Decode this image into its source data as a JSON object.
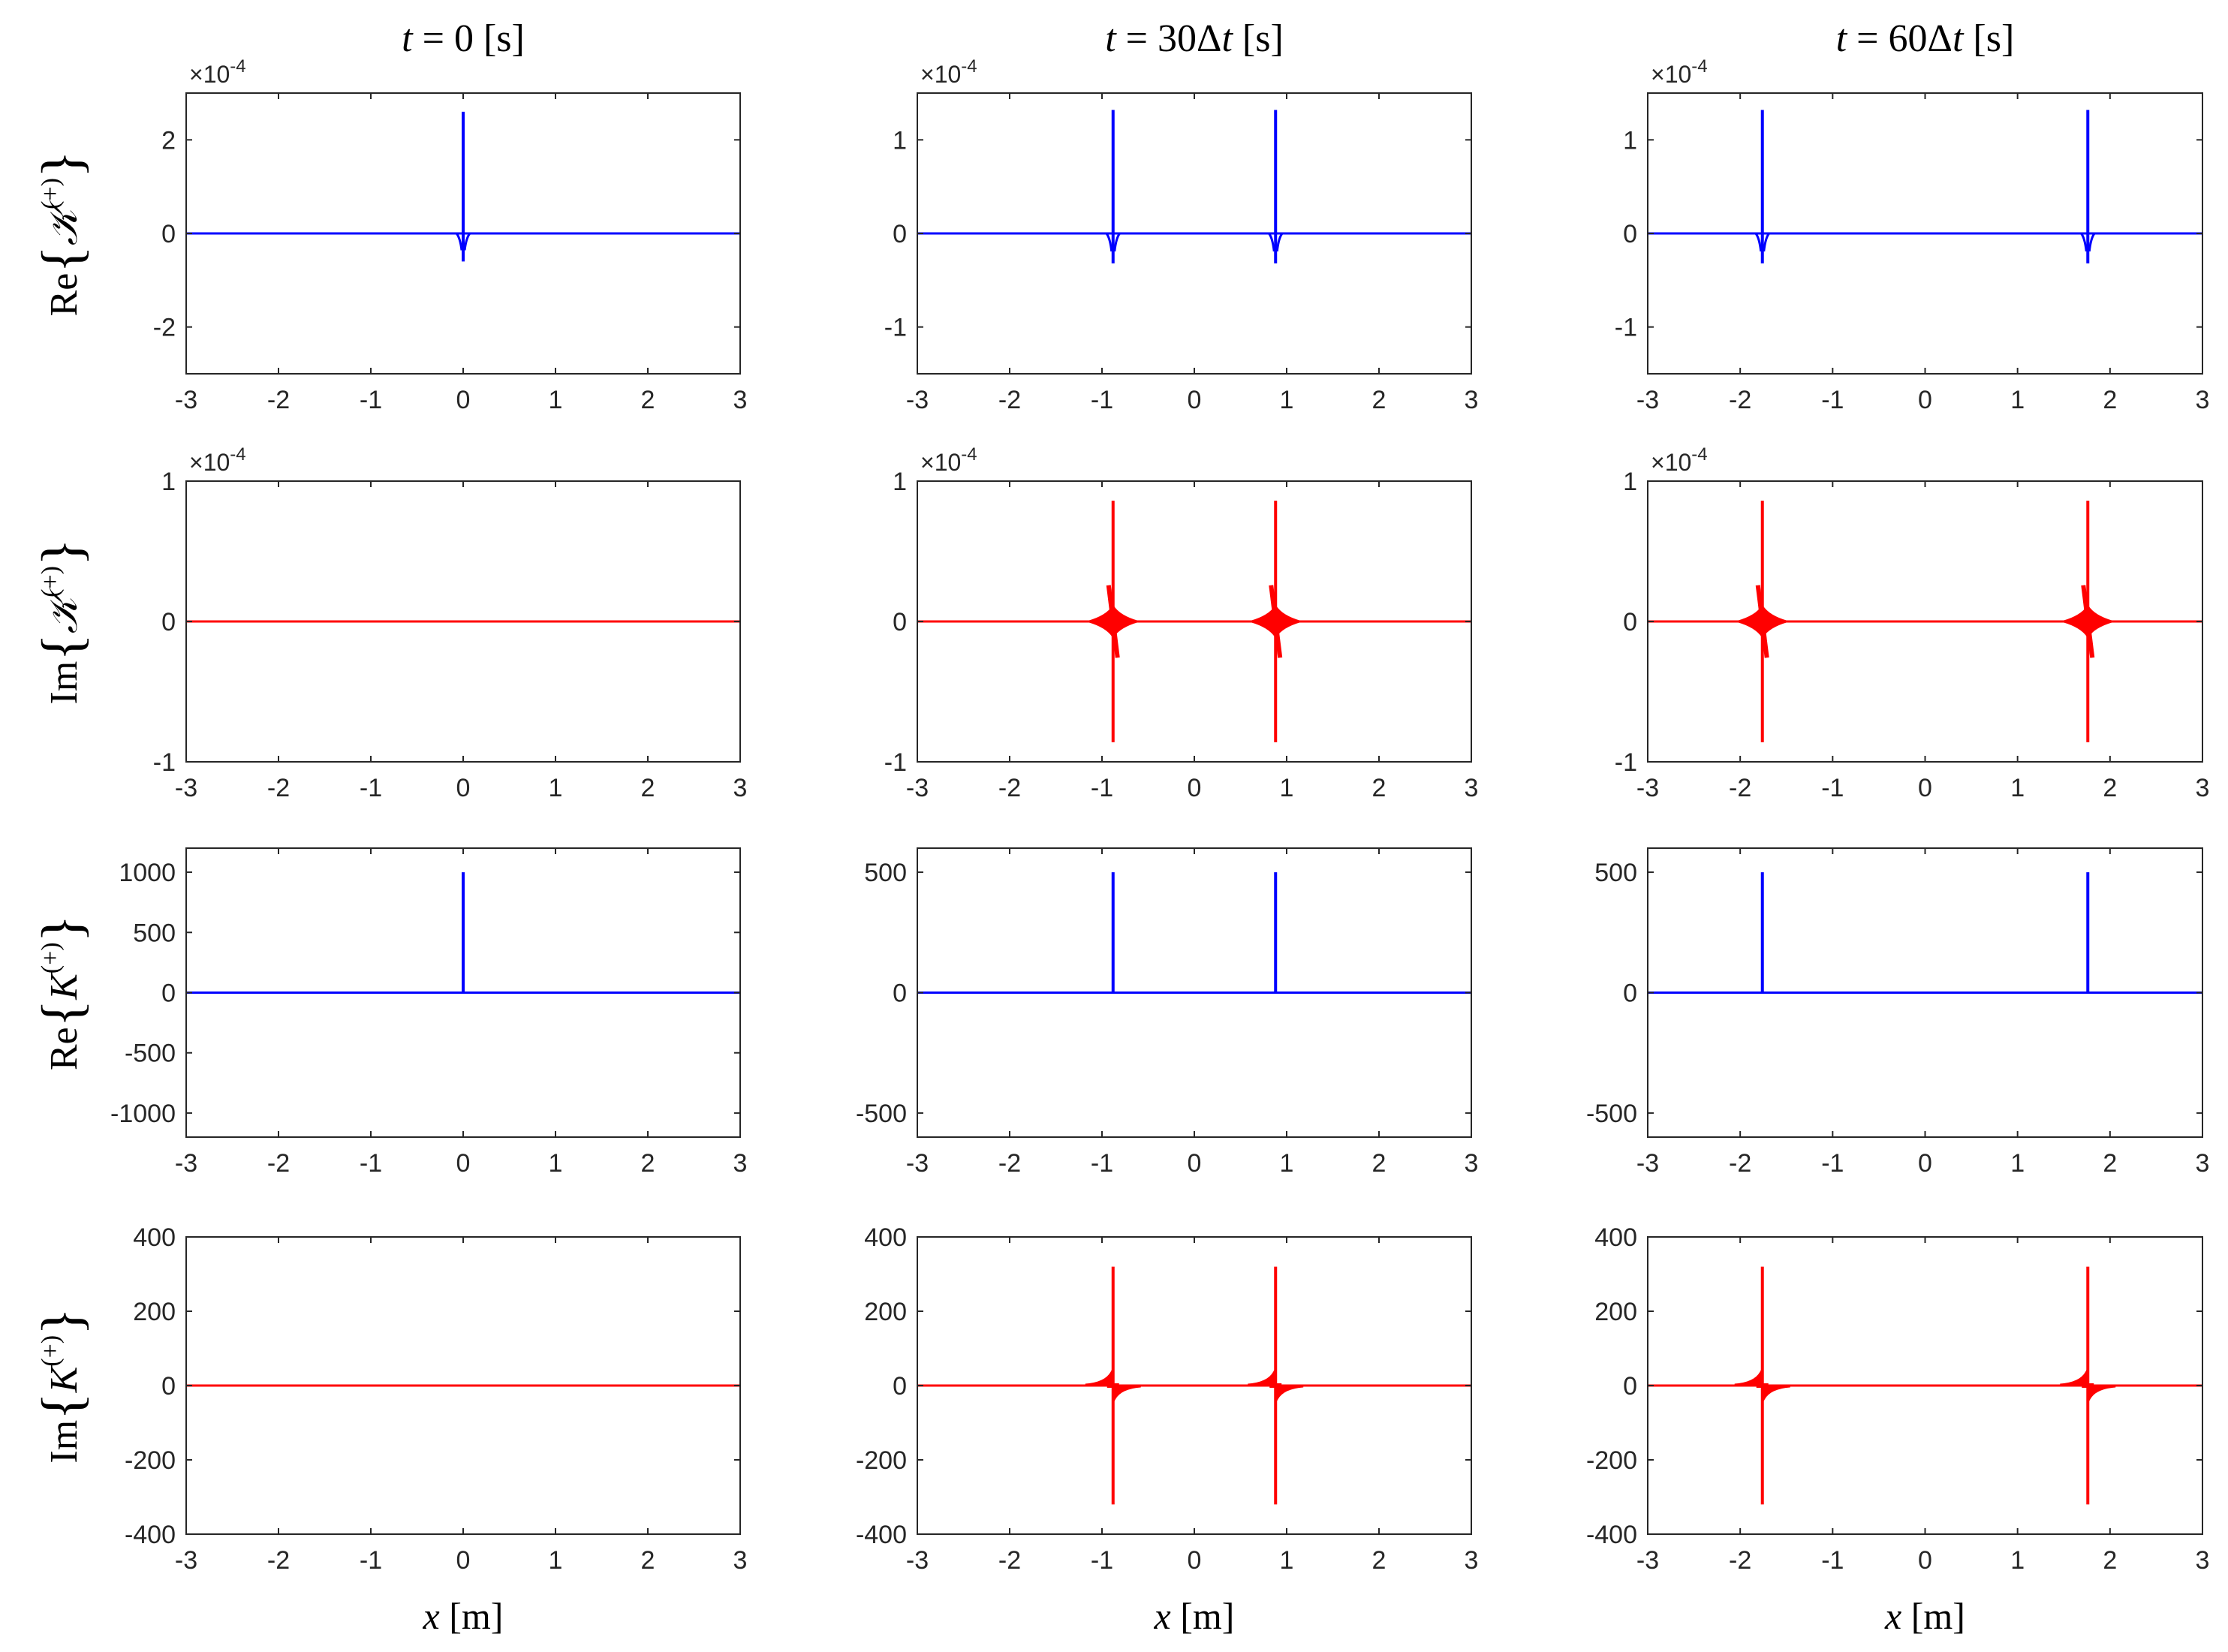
{
  "figure": {
    "column_titles": [
      "t = 0 [s]",
      "t = 30Δt [s]",
      "t = 60Δt [s]"
    ],
    "row_labels": [
      "Re{𝒦(+)}",
      "Im{𝒦(+)}",
      "Re{K(+)}",
      "Im{K(+)}"
    ],
    "xlabel": "x [m]"
  },
  "colors": {
    "re": "#0000ff",
    "im": "#ff0000",
    "axis": "#262626",
    "bg": "#ffffff"
  },
  "chart_data": [
    {
      "type": "line",
      "row": 0,
      "col": 0,
      "title": "t = 0 [s]",
      "ylabel": "Re{𝒦(+)}",
      "xlabel": "",
      "xlim": [
        -3,
        3
      ],
      "ylim": [
        -3,
        3
      ],
      "xticks": [
        -3,
        -2,
        -1,
        0,
        1,
        2,
        3
      ],
      "yticks": [
        -2,
        0,
        2
      ],
      "exponent": "×10^-4",
      "series": [
        {
          "name": "Re",
          "color": "#0000ff",
          "kind": "re_small",
          "peaks": [
            0
          ],
          "peak_max": 2.6,
          "peak_min": -0.6
        }
      ]
    },
    {
      "type": "line",
      "row": 0,
      "col": 1,
      "title": "t = 30Δt [s]",
      "ylabel": "",
      "xlabel": "",
      "xlim": [
        -3,
        3
      ],
      "ylim": [
        -1.5,
        1.5
      ],
      "xticks": [
        -3,
        -2,
        -1,
        0,
        1,
        2,
        3
      ],
      "yticks": [
        -1,
        0,
        1
      ],
      "exponent": "×10^-4",
      "series": [
        {
          "name": "Re",
          "color": "#0000ff",
          "kind": "re_small",
          "peaks": [
            -0.88,
            0.88
          ],
          "peak_max": 1.32,
          "peak_min": -0.32
        }
      ]
    },
    {
      "type": "line",
      "row": 0,
      "col": 2,
      "title": "t = 60Δt [s]",
      "ylabel": "",
      "xlabel": "",
      "xlim": [
        -3,
        3
      ],
      "ylim": [
        -1.5,
        1.5
      ],
      "xticks": [
        -3,
        -2,
        -1,
        0,
        1,
        2,
        3
      ],
      "yticks": [
        -1,
        0,
        1
      ],
      "exponent": "×10^-4",
      "series": [
        {
          "name": "Re",
          "color": "#0000ff",
          "kind": "re_small",
          "peaks": [
            -1.76,
            1.76
          ],
          "peak_max": 1.32,
          "peak_min": -0.32
        }
      ]
    },
    {
      "type": "line",
      "row": 1,
      "col": 0,
      "title": "",
      "ylabel": "Im{𝒦(+)}",
      "xlabel": "",
      "xlim": [
        -3,
        3
      ],
      "ylim": [
        -1,
        1
      ],
      "xticks": [
        -3,
        -2,
        -1,
        0,
        1,
        2,
        3
      ],
      "yticks": [
        -1,
        0,
        1
      ],
      "exponent": "×10^-4",
      "series": [
        {
          "name": "Im",
          "color": "#ff0000",
          "kind": "flat",
          "peaks": [],
          "peak_max": 0,
          "peak_min": 0
        }
      ]
    },
    {
      "type": "line",
      "row": 1,
      "col": 1,
      "title": "",
      "ylabel": "",
      "xlabel": "",
      "xlim": [
        -3,
        3
      ],
      "ylim": [
        -1,
        1
      ],
      "xticks": [
        -3,
        -2,
        -1,
        0,
        1,
        2,
        3
      ],
      "yticks": [
        -1,
        0,
        1
      ],
      "exponent": "×10^-4",
      "series": [
        {
          "name": "Im",
          "color": "#ff0000",
          "kind": "im_small",
          "peaks": [
            -0.88,
            0.88
          ],
          "peak_max": 0.86,
          "peak_min": -0.86
        }
      ]
    },
    {
      "type": "line",
      "row": 1,
      "col": 2,
      "title": "",
      "ylabel": "",
      "xlabel": "",
      "xlim": [
        -3,
        3
      ],
      "ylim": [
        -1,
        1
      ],
      "xticks": [
        -3,
        -2,
        -1,
        0,
        1,
        2,
        3
      ],
      "yticks": [
        -1,
        0,
        1
      ],
      "exponent": "×10^-4",
      "series": [
        {
          "name": "Im",
          "color": "#ff0000",
          "kind": "im_small",
          "peaks": [
            -1.76,
            1.76
          ],
          "peak_max": 0.86,
          "peak_min": -0.86
        }
      ]
    },
    {
      "type": "line",
      "row": 2,
      "col": 0,
      "title": "",
      "ylabel": "Re{K(+)}",
      "xlabel": "",
      "xlim": [
        -3,
        3
      ],
      "ylim": [
        -1200,
        1200
      ],
      "xticks": [
        -3,
        -2,
        -1,
        0,
        1,
        2,
        3
      ],
      "yticks": [
        -1000,
        -500,
        0,
        500,
        1000
      ],
      "exponent": "",
      "series": [
        {
          "name": "Re",
          "color": "#0000ff",
          "kind": "re_big",
          "peaks": [
            0
          ],
          "peak_max": 1000,
          "peak_min": 0
        }
      ]
    },
    {
      "type": "line",
      "row": 2,
      "col": 1,
      "title": "",
      "ylabel": "",
      "xlabel": "",
      "xlim": [
        -3,
        3
      ],
      "ylim": [
        -600,
        600
      ],
      "xticks": [
        -3,
        -2,
        -1,
        0,
        1,
        2,
        3
      ],
      "yticks": [
        -500,
        0,
        500
      ],
      "exponent": "",
      "series": [
        {
          "name": "Re",
          "color": "#0000ff",
          "kind": "re_big",
          "peaks": [
            -0.88,
            0.88
          ],
          "peak_max": 500,
          "peak_min": 0
        }
      ]
    },
    {
      "type": "line",
      "row": 2,
      "col": 2,
      "title": "",
      "ylabel": "",
      "xlabel": "",
      "xlim": [
        -3,
        3
      ],
      "ylim": [
        -600,
        600
      ],
      "xticks": [
        -3,
        -2,
        -1,
        0,
        1,
        2,
        3
      ],
      "yticks": [
        -500,
        0,
        500
      ],
      "exponent": "",
      "series": [
        {
          "name": "Re",
          "color": "#0000ff",
          "kind": "re_big",
          "peaks": [
            -1.76,
            1.76
          ],
          "peak_max": 500,
          "peak_min": 0
        }
      ]
    },
    {
      "type": "line",
      "row": 3,
      "col": 0,
      "title": "",
      "ylabel": "Im{K(+)}",
      "xlabel": "x [m]",
      "xlim": [
        -3,
        3
      ],
      "ylim": [
        -400,
        400
      ],
      "xticks": [
        -3,
        -2,
        -1,
        0,
        1,
        2,
        3
      ],
      "yticks": [
        -400,
        -200,
        0,
        200,
        400
      ],
      "exponent": "",
      "series": [
        {
          "name": "Im",
          "color": "#ff0000",
          "kind": "flat",
          "peaks": [],
          "peak_max": 0,
          "peak_min": 0
        }
      ]
    },
    {
      "type": "line",
      "row": 3,
      "col": 1,
      "title": "",
      "ylabel": "",
      "xlabel": "x [m]",
      "xlim": [
        -3,
        3
      ],
      "ylim": [
        -400,
        400
      ],
      "xticks": [
        -3,
        -2,
        -1,
        0,
        1,
        2,
        3
      ],
      "yticks": [
        -400,
        -200,
        0,
        200,
        400
      ],
      "exponent": "",
      "series": [
        {
          "name": "Im",
          "color": "#ff0000",
          "kind": "im_big",
          "peaks": [
            -0.88,
            0.88
          ],
          "peak_max": 320,
          "peak_min": -320
        }
      ]
    },
    {
      "type": "line",
      "row": 3,
      "col": 2,
      "title": "",
      "ylabel": "",
      "xlabel": "x [m]",
      "xlim": [
        -3,
        3
      ],
      "ylim": [
        -400,
        400
      ],
      "xticks": [
        -3,
        -2,
        -1,
        0,
        1,
        2,
        3
      ],
      "yticks": [
        -400,
        -200,
        0,
        200,
        400
      ],
      "exponent": "",
      "series": [
        {
          "name": "Im",
          "color": "#ff0000",
          "kind": "im_big",
          "peaks": [
            -1.76,
            1.76
          ],
          "peak_max": 320,
          "peak_min": -320
        }
      ]
    }
  ]
}
